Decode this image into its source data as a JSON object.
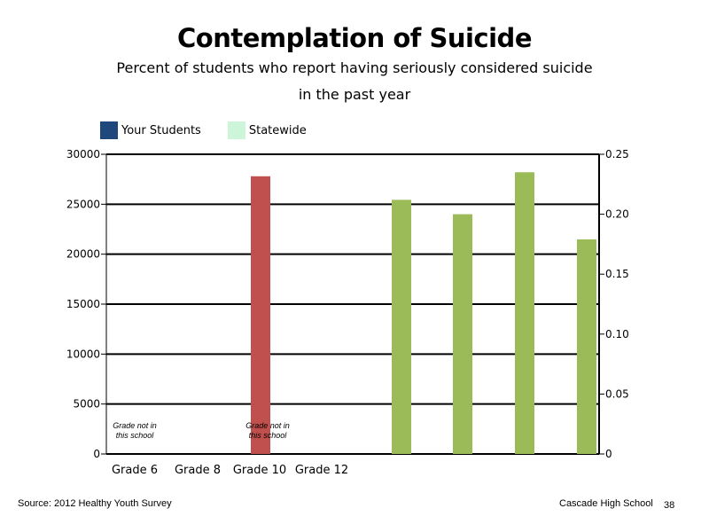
{
  "chart_data": {
    "type": "bar",
    "title": "Contemplation of Suicide",
    "subtitle_line1": "Percent of students who report having seriously considered suicide",
    "subtitle_line2": "in the past year",
    "categories": [
      "Grade 6",
      "Grade 8",
      "Grade 10",
      "Grade 12"
    ],
    "legend": [
      {
        "name": "Your Students",
        "color": "#1f497d"
      },
      {
        "name": "Statewide",
        "color": "#ccf5d9"
      }
    ],
    "left_axis": {
      "min": 0,
      "max": 30000,
      "ticks": [
        "0",
        "5000",
        "10000",
        "15000",
        "20000",
        "25000",
        "30000"
      ]
    },
    "right_axis": {
      "min": 0,
      "max": 0.25,
      "ticks": [
        "0",
        "0.05",
        "0.10",
        "0.15",
        "0.20",
        "0.25"
      ]
    },
    "bars": [
      {
        "series": "left",
        "value": 27800,
        "color": "#c0504d"
      },
      {
        "series": "right",
        "value": 0.212,
        "color": "#9bbb59"
      },
      {
        "series": "right",
        "value": 0.2,
        "color": "#9bbb59"
      },
      {
        "series": "right",
        "value": 0.235,
        "color": "#9bbb59"
      },
      {
        "series": "right",
        "value": 0.179,
        "color": "#9bbb59"
      }
    ],
    "annotations": [
      {
        "line1": "Grade not in",
        "line2": "this school"
      },
      {
        "line1": "Grade not in",
        "line2": "this school"
      }
    ],
    "grid": true
  },
  "footer": {
    "source": "Source: 2012 Healthy Youth Survey",
    "school": "Cascade High School",
    "page": "38"
  }
}
